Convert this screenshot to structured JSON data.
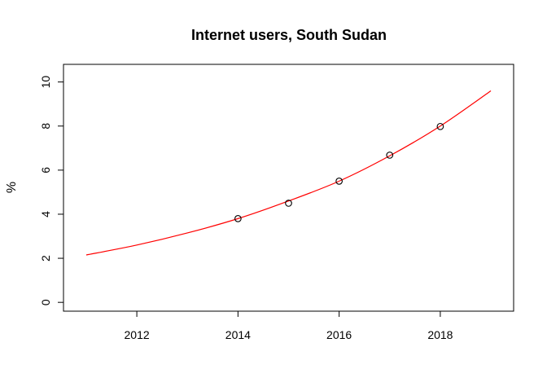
{
  "chart_data": {
    "type": "scatter",
    "title": "Internet users, South Sudan",
    "xlabel": "",
    "ylabel": "%",
    "xlim": [
      2010.55,
      2019.45
    ],
    "ylim": [
      -0.4,
      10.8
    ],
    "x_ticks": [
      2012,
      2014,
      2016,
      2018
    ],
    "y_ticks": [
      0,
      2,
      4,
      6,
      8,
      10
    ],
    "grid": false,
    "points": {
      "x": [
        2014,
        2015,
        2016,
        2017,
        2018
      ],
      "y": [
        3.8,
        4.5,
        5.5,
        6.68,
        7.98
      ],
      "marker": "open-circle",
      "color": "#000000"
    },
    "fit_curve": {
      "x": [
        2011,
        2012,
        2013,
        2014,
        2015,
        2016,
        2017,
        2018,
        2019
      ],
      "y": [
        2.15,
        2.6,
        3.15,
        3.8,
        4.6,
        5.5,
        6.65,
        8.0,
        9.6
      ],
      "color": "#ff0000"
    }
  }
}
